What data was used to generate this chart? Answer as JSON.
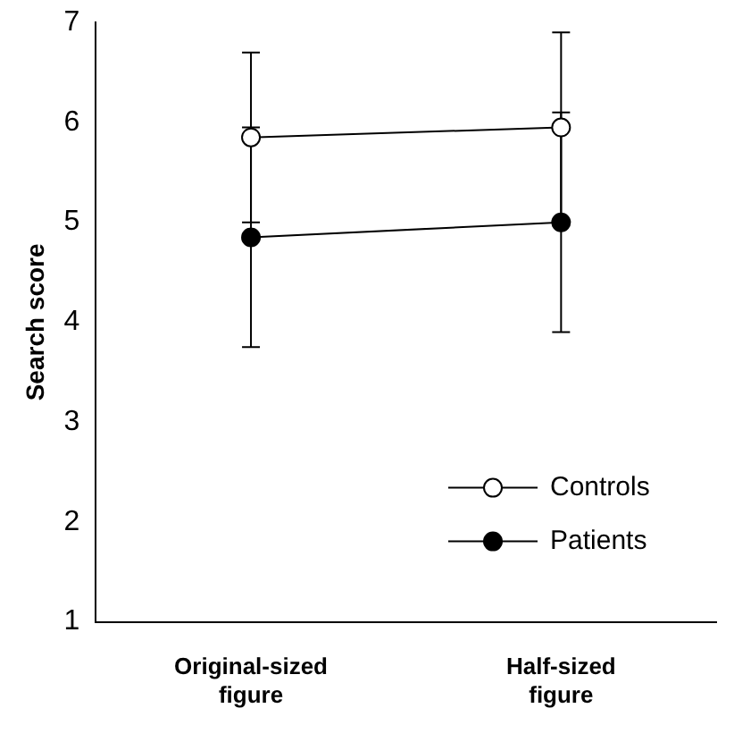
{
  "chart_data": {
    "type": "line",
    "ylabel": "Search score",
    "categories": [
      "Original-sized figure",
      "Half-sized figure"
    ],
    "series": [
      {
        "name": "Controls",
        "color": "#ffffff",
        "values": [
          5.85,
          5.95
        ],
        "errors": [
          0.85,
          0.95
        ]
      },
      {
        "name": "Patients",
        "color": "#000000",
        "values": [
          4.85,
          5.0
        ],
        "errors": [
          1.1,
          1.1
        ]
      }
    ],
    "ylim": [
      1,
      7
    ],
    "yticks": [
      1,
      2,
      3,
      4,
      5,
      6,
      7
    ],
    "grid": false,
    "legend": "bottom right",
    "marker": "circle",
    "line_style": "solid"
  }
}
